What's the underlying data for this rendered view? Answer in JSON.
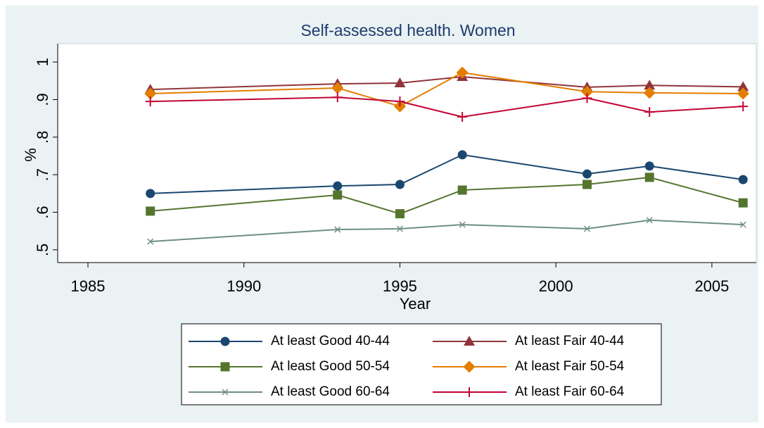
{
  "chart_data": {
    "type": "line",
    "title": "Self-assessed health. Women",
    "xlabel": "Year",
    "ylabel": "%",
    "x": [
      1987,
      1993,
      1995,
      1997,
      2001,
      2003,
      2006
    ],
    "xlim": [
      1984,
      2006.4
    ],
    "xticks": [
      1985,
      1990,
      1995,
      2000,
      2005
    ],
    "ylim": [
      0.466,
      1.049
    ],
    "yticks": [
      {
        "value": 0.5,
        "label": ".5"
      },
      {
        "value": 0.6,
        "label": ".6"
      },
      {
        "value": 0.7,
        "label": ".7"
      },
      {
        "value": 0.8,
        "label": ".8"
      },
      {
        "value": 0.9,
        "label": ".9"
      },
      {
        "value": 1,
        "label": "1"
      }
    ],
    "grid": false,
    "series": [
      {
        "name": "At least Good 40-44",
        "color": "#1a476f",
        "marker": "circle",
        "values": [
          0.65,
          0.67,
          0.674,
          0.753,
          0.702,
          0.723,
          0.687
        ]
      },
      {
        "name": "At least Fair 40-44",
        "color": "#90353b",
        "marker": "triangle",
        "values": [
          0.927,
          0.942,
          0.944,
          0.961,
          0.933,
          0.938,
          0.934
        ]
      },
      {
        "name": "At least Good 50-54",
        "color": "#55752f",
        "marker": "square",
        "values": [
          0.603,
          0.646,
          0.596,
          0.659,
          0.674,
          0.693,
          0.625
        ]
      },
      {
        "name": "At least Fair 50-54",
        "color": "#e37e00",
        "marker": "diamond",
        "values": [
          0.916,
          0.931,
          0.882,
          0.972,
          0.921,
          0.918,
          0.916
        ]
      },
      {
        "name": "At least Good 60-64",
        "color": "#6e8e84",
        "marker": "x",
        "values": [
          0.522,
          0.554,
          0.556,
          0.567,
          0.556,
          0.579,
          0.567
        ]
      },
      {
        "name": "At least Fair 60-64",
        "color": "#c10534",
        "marker": "plus",
        "values": [
          0.895,
          0.906,
          0.895,
          0.854,
          0.904,
          0.867,
          0.882
        ]
      }
    ]
  }
}
